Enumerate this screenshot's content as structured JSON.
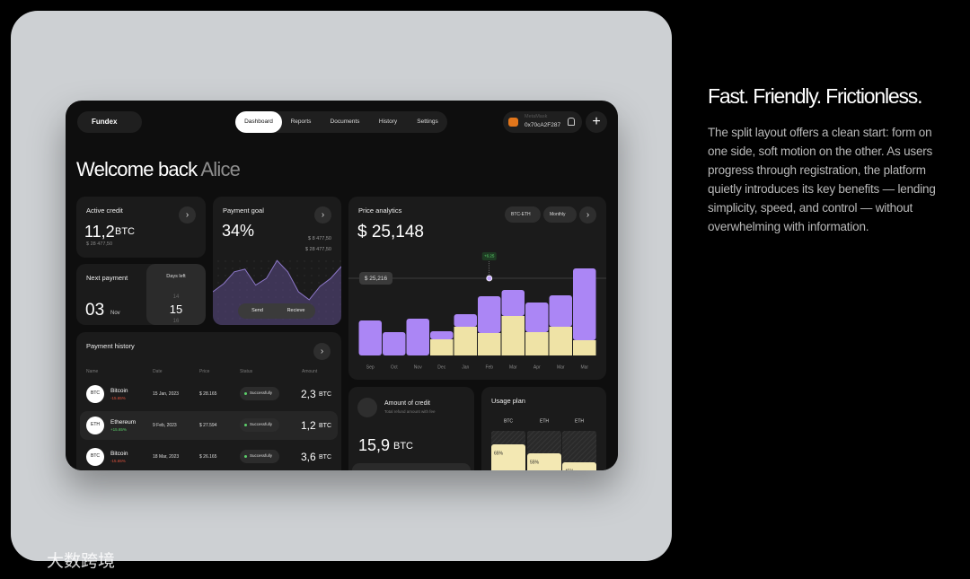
{
  "panel": {
    "title": "Fast. Friendly. Frictionless.",
    "paragraph": [
      "The split layout offers a clean start: form on",
      "one side, soft motion on the other. As users",
      "progress through registration, the platform",
      "quietly introduces its key benefits — lending",
      "simplicity, speed, and control — without",
      "overwhelming with information."
    ]
  },
  "watermark": "大数跨境",
  "app": {
    "logo": "Fundex",
    "nav": [
      "Dashboard",
      "Reports",
      "Documents",
      "History",
      "Settings"
    ],
    "active_nav": 0,
    "wallet": {
      "name": "MetaMask",
      "address": "0x70cA2F287"
    }
  },
  "greeting": {
    "text": "Welcome back",
    "name": "Alice"
  },
  "active_credit": {
    "title": "Active credit",
    "value": "11,2",
    "unit": "BTC",
    "sub": "$ 28 477,50"
  },
  "payment_goal": {
    "title": "Payment goal",
    "value": "34%",
    "amounts": [
      "$ 8 477,50",
      "$ 28 477,50"
    ],
    "buttons": [
      "Send",
      "Recieve"
    ],
    "chart_data": {
      "type": "area",
      "values": [
        50,
        62,
        80,
        84,
        60,
        70,
        97,
        80,
        50,
        38,
        58,
        70,
        88
      ],
      "ylim": [
        0,
        100
      ],
      "color": "#5b4a86"
    }
  },
  "next_payment": {
    "title": "Next payment",
    "day": "03",
    "month": "Nov",
    "days_left_label": "Days left",
    "days": [
      "14",
      "15",
      "16"
    ]
  },
  "payment_history": {
    "title": "Payment history",
    "columns": [
      "Name",
      "Date",
      "Price",
      "Status",
      "Amount"
    ],
    "rows": [
      {
        "icon": "BTC",
        "name": "Bitcoin",
        "change": "-15.65%",
        "date": "15 Jan, 2023",
        "price": "$ 28.165",
        "status": "Successfully",
        "amount": "2,3",
        "unit": "BTC"
      },
      {
        "icon": "ETH",
        "name": "Ethereum",
        "change": "+15.65%",
        "date": "9 Feb, 2023",
        "price": "$ 27.594",
        "status": "Successfully",
        "amount": "1,2",
        "unit": "BTC"
      },
      {
        "icon": "BTC",
        "name": "Bitcoin",
        "change": "-15.65%",
        "date": "18 Mar, 2023",
        "price": "$ 26.165",
        "status": "Successfully",
        "amount": "3,6",
        "unit": "BTC"
      }
    ]
  },
  "price_analytics": {
    "title": "Price analytics",
    "value": "$ 25,148",
    "filters": [
      "BTC-ETH",
      "Monthly"
    ],
    "line_label": "$ 25,216",
    "tag": "+6.25",
    "chart_data": {
      "type": "stacked_bar",
      "categories": [
        "Sep",
        "Oct",
        "Nov",
        "Dec",
        "Jan",
        "Feb",
        "Mar",
        "Apr",
        "Mar",
        "Mar"
      ],
      "series": [
        {
          "color": "#efe3a6",
          "values": [
            0,
            0,
            0,
            18,
            32,
            25,
            44,
            26,
            32,
            17
          ]
        },
        {
          "color": "#ab86f5",
          "values": [
            39,
            26,
            41,
            9,
            14,
            41,
            29,
            33,
            35,
            80
          ]
        }
      ],
      "ylim": [
        0,
        116
      ]
    }
  },
  "amount_of_credit": {
    "title": "Amount of credit",
    "sub": "Total refund amount with fee",
    "value": "15,9",
    "unit": "BTC"
  },
  "usage_plan": {
    "title": "Usage plan",
    "chart_data": {
      "type": "bar",
      "categories": [
        "BTC",
        "ETH",
        "ETH"
      ],
      "values": [
        65,
        55,
        45
      ],
      "value_labels": [
        "65%",
        "55%",
        "45%"
      ],
      "ylim": [
        0,
        100
      ],
      "color": "#f3e8b3"
    }
  }
}
